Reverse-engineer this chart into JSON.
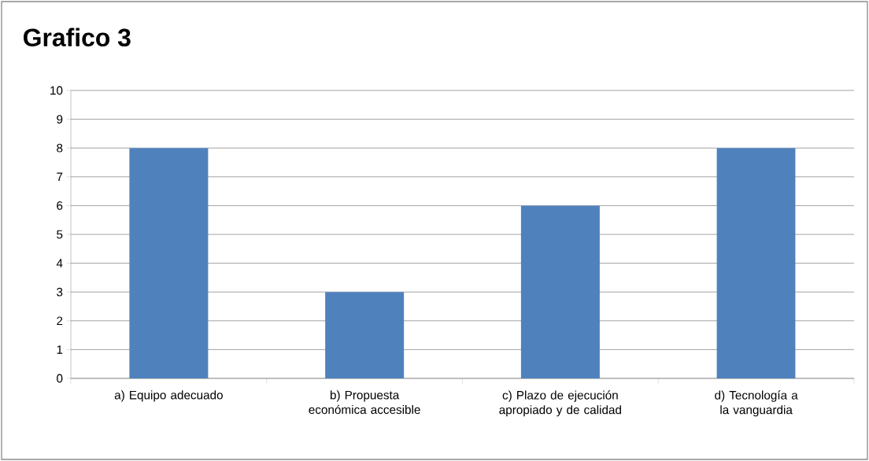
{
  "chart_data": {
    "type": "bar",
    "title": "Grafico 3",
    "categories": [
      "a) Equipo adecuado",
      "b) Propuesta económica accesible",
      "c) Plazo de ejecución apropiado y de calidad",
      "d) Tecnología a la vanguardia"
    ],
    "values": [
      8,
      3,
      6,
      8
    ],
    "color": "#4f81bd",
    "ylim": [
      0,
      10
    ],
    "yticks": [
      0,
      1,
      2,
      3,
      4,
      5,
      6,
      7,
      8,
      9,
      10
    ],
    "grid": "y"
  }
}
